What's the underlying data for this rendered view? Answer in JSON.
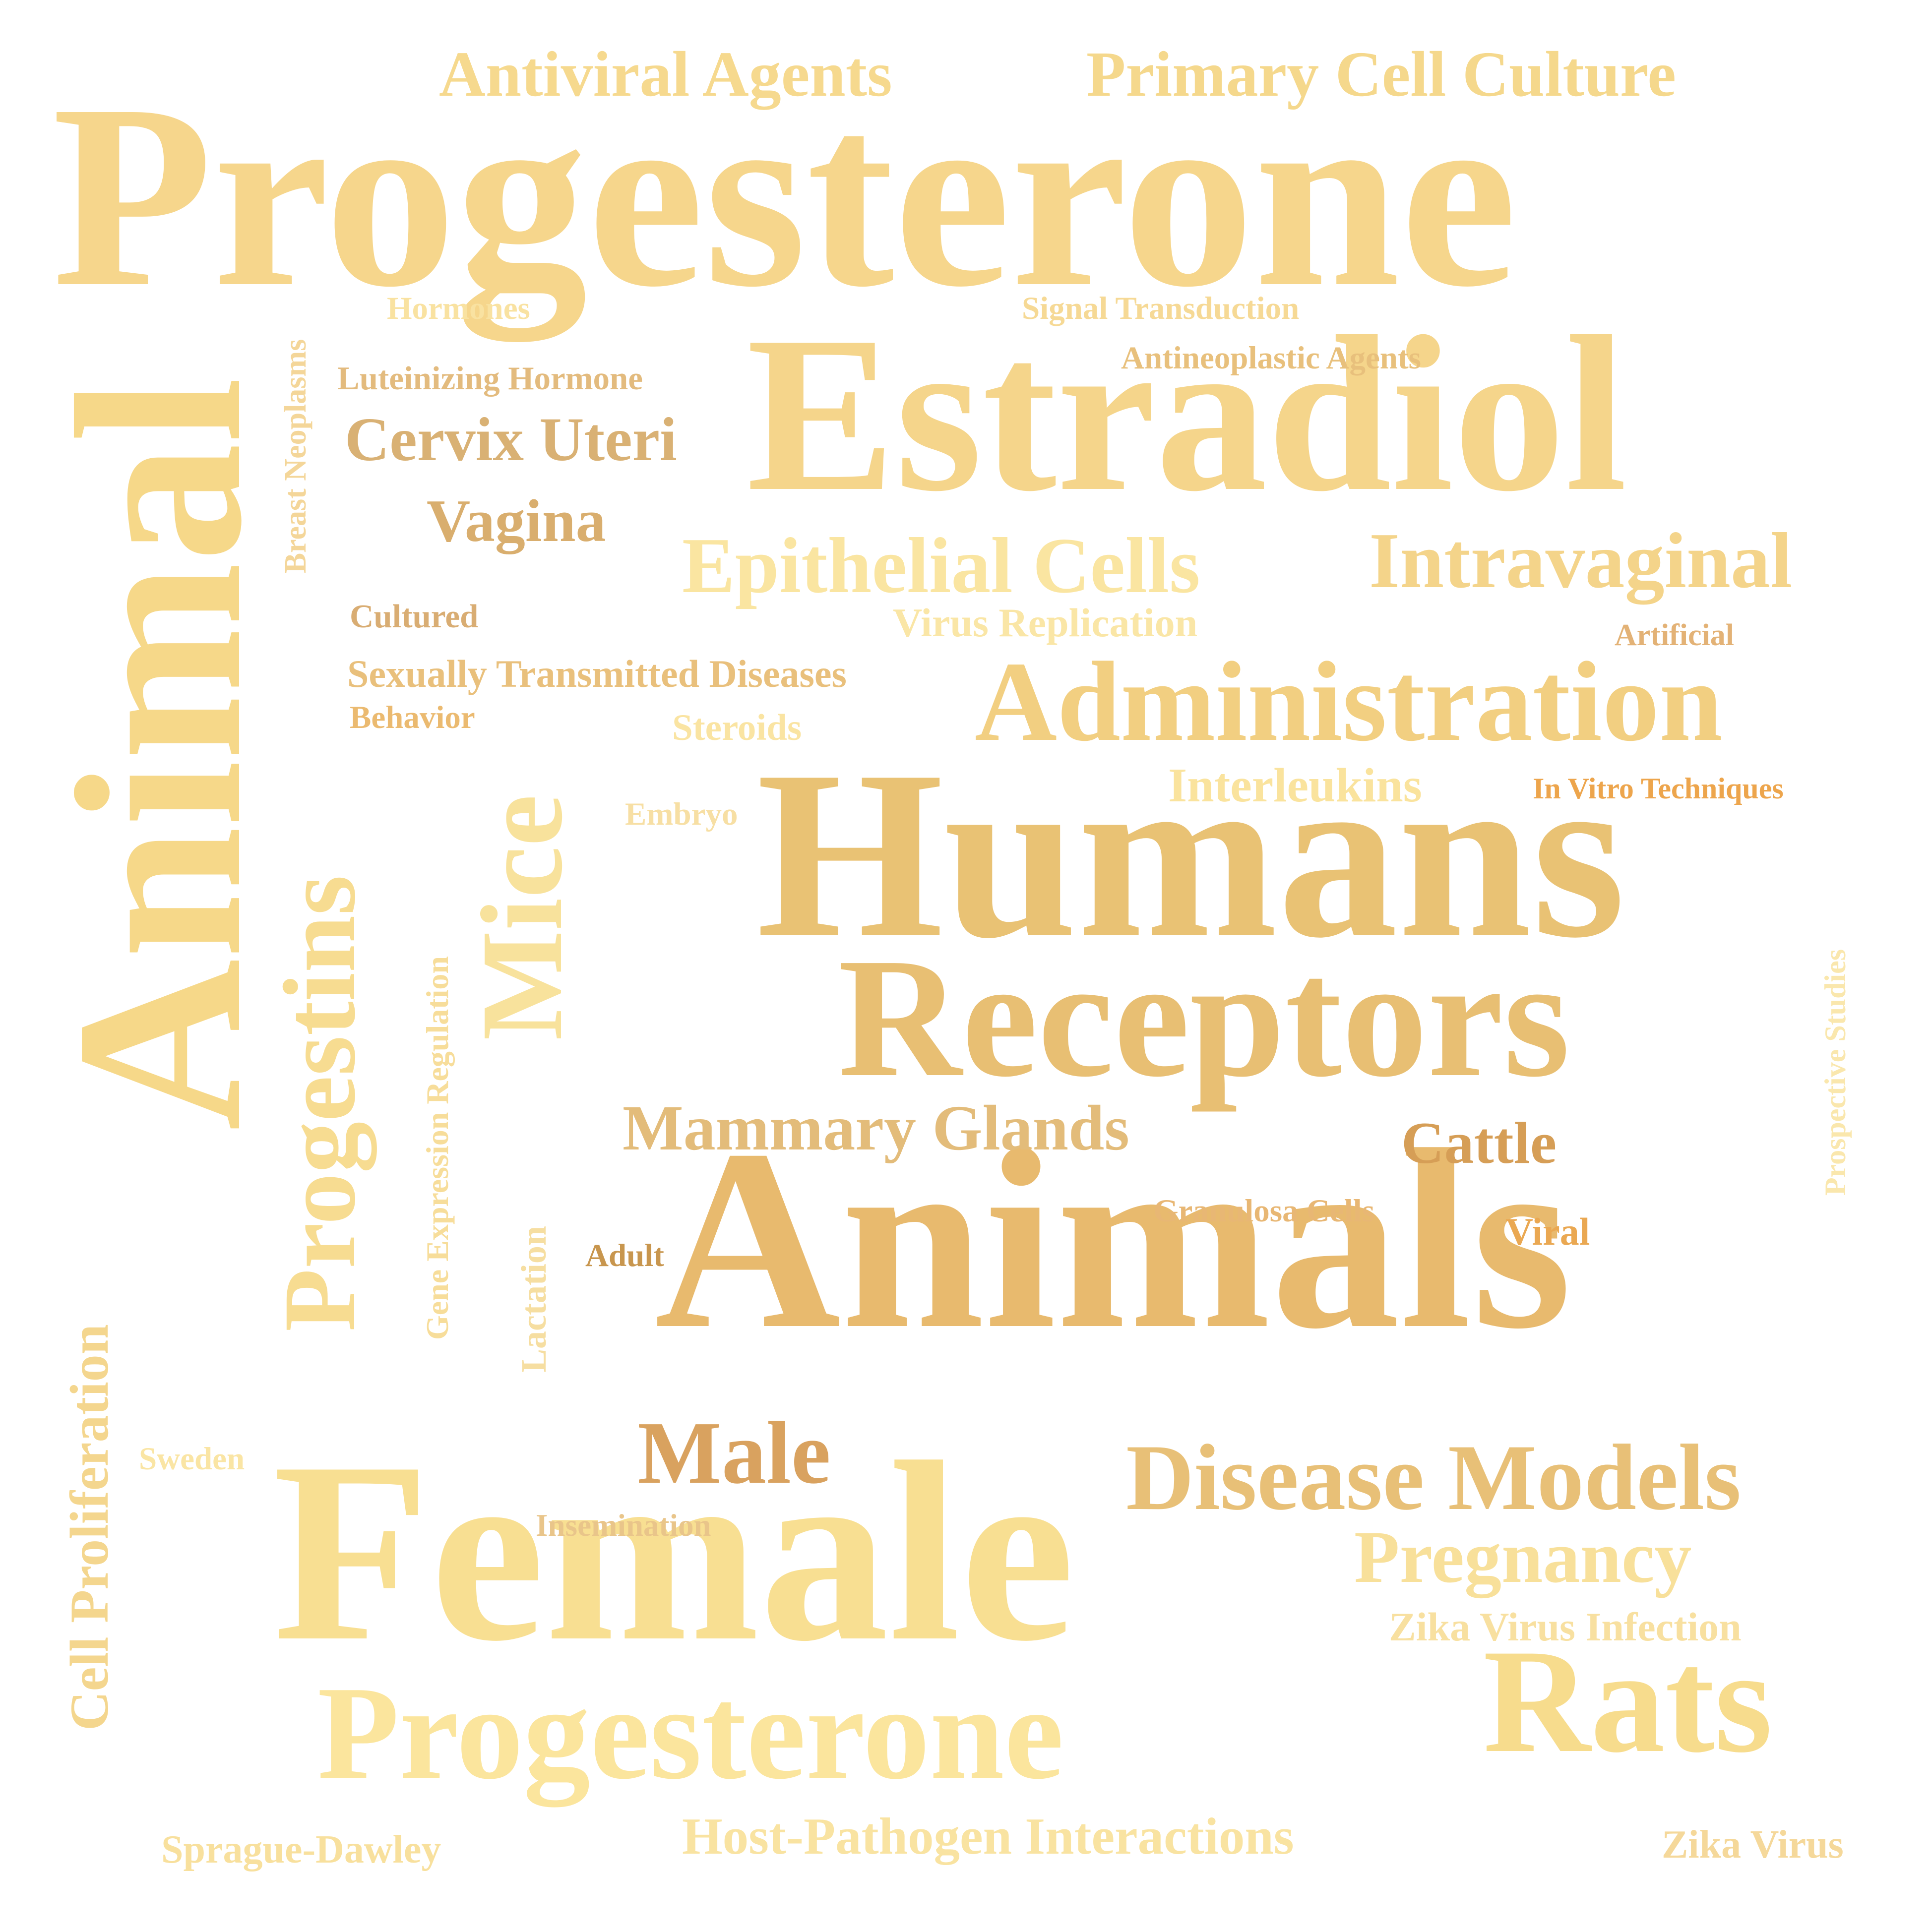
{
  "words": [
    {
      "text": "Progesterone",
      "color": "#f6d68c"
    },
    {
      "text": "Estradiol",
      "color": "#f5d58b"
    },
    {
      "text": "Animals",
      "color": "#e8ba6e"
    },
    {
      "text": "Humans",
      "color": "#e9c274"
    },
    {
      "text": "Female",
      "color": "#f8df92"
    },
    {
      "text": "Animal",
      "color": "#f6d889"
    },
    {
      "text": "Receptors",
      "color": "#e8bf73"
    },
    {
      "text": "Mice",
      "color": "#f8e29c"
    },
    {
      "text": "Progestins",
      "color": "#f7dc91"
    },
    {
      "text": "Administration",
      "color": "#f2cf81"
    },
    {
      "text": "Progesterone",
      "color": "#fbe59d"
    },
    {
      "text": "Rats",
      "color": "#f7dc8d"
    },
    {
      "text": "Disease Models",
      "color": "#e8c077"
    },
    {
      "text": "Intravaginal",
      "color": "#f4d48a"
    },
    {
      "text": "Epithelial Cells",
      "color": "#fae5a1"
    },
    {
      "text": "Antiviral Agents",
      "color": "#f6d98e"
    },
    {
      "text": "Primary Cell Culture",
      "color": "#f5d88c"
    },
    {
      "text": "Pregnancy",
      "color": "#f8e09a"
    },
    {
      "text": "Male",
      "color": "#d9a25f"
    },
    {
      "text": "Mammary Glands",
      "color": "#e3bc7a"
    },
    {
      "text": "Cervix Uteri",
      "color": "#d9b174"
    },
    {
      "text": "Vagina",
      "color": "#d9ae6e"
    },
    {
      "text": "Cell Proliferation",
      "color": "#f4d68e"
    },
    {
      "text": "Cattle",
      "color": "#d69e56"
    },
    {
      "text": "Interleukins",
      "color": "#fae39d"
    },
    {
      "text": "Host-Pathogen Interactions",
      "color": "#f9e3a1"
    },
    {
      "text": "Sexually Transmitted Diseases",
      "color": "#e9c07c"
    },
    {
      "text": "Zika Virus Infection",
      "color": "#f8e0a0"
    },
    {
      "text": "Virus Replication",
      "color": "#fae6a6"
    },
    {
      "text": "Signal Transduction",
      "color": "#f6d995"
    },
    {
      "text": "Antineoplastic Agents",
      "color": "#e8c07c"
    },
    {
      "text": "Luteinizing Hormone",
      "color": "#e3bb7e"
    },
    {
      "text": "Steroids",
      "color": "#fae4a2"
    },
    {
      "text": "In Vitro Techniques",
      "color": "#eda54c"
    },
    {
      "text": "Sprague-Dawley",
      "color": "#f8e09d"
    },
    {
      "text": "Zika Virus",
      "color": "#f5d89a"
    },
    {
      "text": "Gene Expression Regulation",
      "color": "#f7dd9a"
    },
    {
      "text": "Prospective Studies",
      "color": "#fae7ad"
    },
    {
      "text": "Breast Neoplasms",
      "color": "#f4d699"
    },
    {
      "text": "Granulosa Cells",
      "color": "#e8b774"
    },
    {
      "text": "Lactation",
      "color": "#f6dea1"
    },
    {
      "text": "Insemination",
      "color": "#e9c58a"
    },
    {
      "text": "Hormones",
      "color": "#f9e2a1"
    },
    {
      "text": "Viral",
      "color": "#eaa852"
    },
    {
      "text": "Embryo",
      "color": "#f7dfa4"
    },
    {
      "text": "Cultured",
      "color": "#d9ad73"
    },
    {
      "text": "Artificial",
      "color": "#e3b276"
    },
    {
      "text": "Behavior",
      "color": "#ebba70"
    },
    {
      "text": "Adult",
      "color": "#c8964e"
    },
    {
      "text": "Sweden",
      "color": "#fae5a4"
    }
  ]
}
